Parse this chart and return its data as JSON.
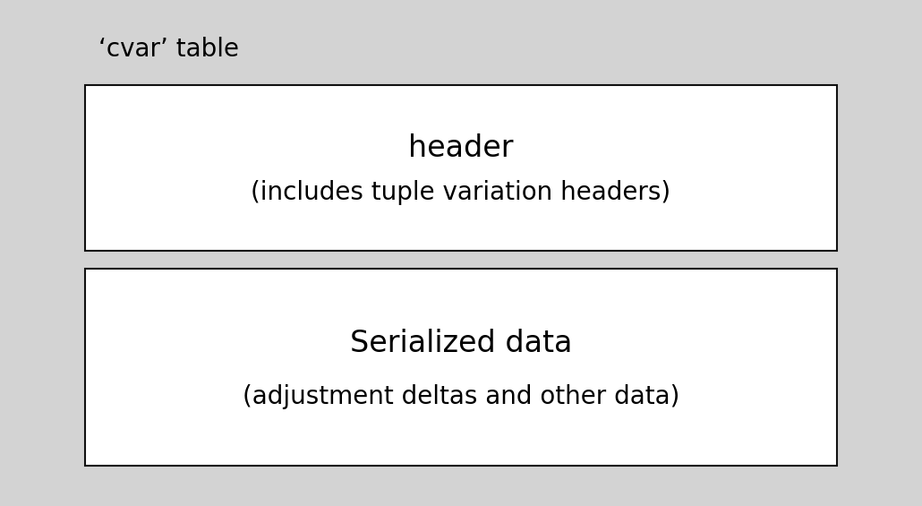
{
  "background_color": "#d3d3d3",
  "title_text": "‘cvar’ table",
  "title_fontsize": 20,
  "box1": {
    "label1": "header",
    "label2": "(includes tuple variation headers)",
    "label1_fontsize": 24,
    "label2_fontsize": 20,
    "facecolor": "#ffffff",
    "edgecolor": "#111111",
    "linewidth": 1.5
  },
  "box2": {
    "label1": "Serialized data",
    "label2": "(adjustment deltas and other data)",
    "label1_fontsize": 24,
    "label2_fontsize": 20,
    "facecolor": "#ffffff",
    "edgecolor": "#111111",
    "linewidth": 1.5
  }
}
